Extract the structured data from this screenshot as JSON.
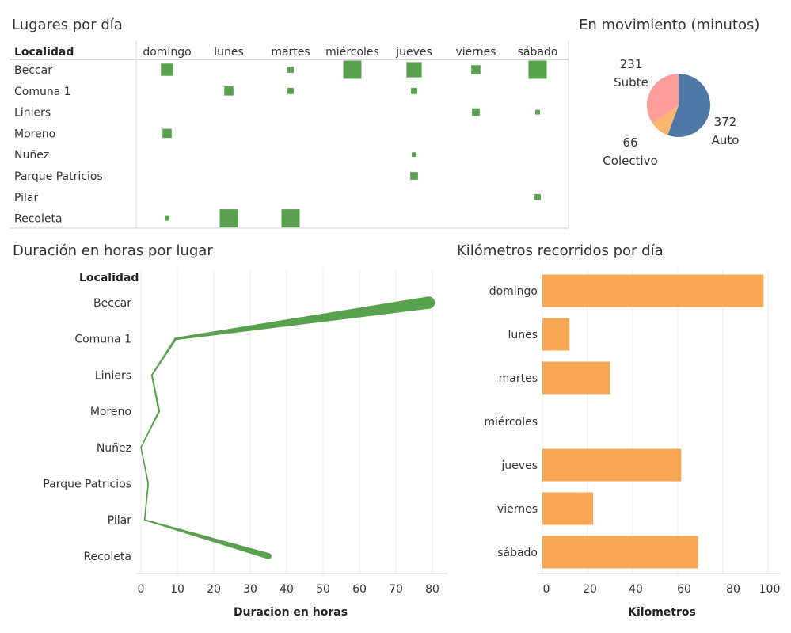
{
  "titles": {
    "places_by_day": "Lugares por día",
    "in_movement": "En movimiento (minutos)",
    "hours_by_place": "Duración en horas por lugar",
    "km_by_day": "Kilómetros recorridos por día"
  },
  "colors": {
    "green": "#59a14f",
    "orange": "#f7a654",
    "blue": "#4e79a7",
    "peach": "#fbb56e",
    "pink": "#fe9d9a"
  },
  "chart_data": [
    {
      "type": "heatmap",
      "title": "Lugares por día",
      "row_header": "Localidad",
      "columns": [
        "domingo",
        "lunes",
        "martes",
        "miércoles",
        "jueves",
        "viernes",
        "sábado"
      ],
      "rows": [
        "Beccar",
        "Comuna 1",
        "Liniers",
        "Moreno",
        "Nuñez",
        "Parque Patricios",
        "Pilar",
        "Recoleta"
      ],
      "values": [
        [
          3,
          0,
          1,
          5,
          4,
          2,
          5
        ],
        [
          0,
          2,
          1,
          0,
          1,
          0,
          0
        ],
        [
          0,
          0,
          0,
          0,
          0,
          1.5,
          0.5
        ],
        [
          2,
          0,
          0,
          0,
          0,
          0,
          0
        ],
        [
          0,
          0,
          0,
          0,
          0.5,
          0,
          0
        ],
        [
          0,
          0,
          0,
          0,
          1.5,
          0,
          0
        ],
        [
          0,
          0,
          0,
          0,
          0,
          0,
          1
        ],
        [
          0.5,
          5,
          5,
          0,
          0,
          0,
          0
        ]
      ]
    },
    {
      "type": "pie",
      "title": "En movimiento (minutos)",
      "slices": [
        {
          "label": "Auto",
          "value": 372
        },
        {
          "label": "Colectivo",
          "value": 66
        },
        {
          "label": "Subte",
          "value": 231
        }
      ]
    },
    {
      "type": "line",
      "title": "Duración en horas por lugar",
      "ylabel": "Localidad",
      "xlabel": "Duracion en horas",
      "categories": [
        "Beccar",
        "Comuna 1",
        "Liniers",
        "Moreno",
        "Nuñez",
        "Parque Patricios",
        "Pilar",
        "Recoleta"
      ],
      "values": [
        79,
        9.5,
        3,
        5,
        0,
        2,
        1,
        35
      ],
      "xlim": [
        0,
        85
      ],
      "xticks": [
        0,
        10,
        20,
        30,
        40,
        50,
        60,
        70,
        80
      ],
      "grid": true
    },
    {
      "type": "bar",
      "title": "Kilómetros recorridos por día",
      "xlabel": "Kilometros",
      "categories": [
        "domingo",
        "lunes",
        "martes",
        "miércoles",
        "jueves",
        "viernes",
        "sábado"
      ],
      "values": [
        98,
        12,
        30,
        0,
        61.5,
        22.5,
        69
      ],
      "xlim": [
        0,
        100
      ],
      "xticks": [
        0,
        20,
        40,
        60,
        80,
        100
      ],
      "grid": true
    }
  ]
}
